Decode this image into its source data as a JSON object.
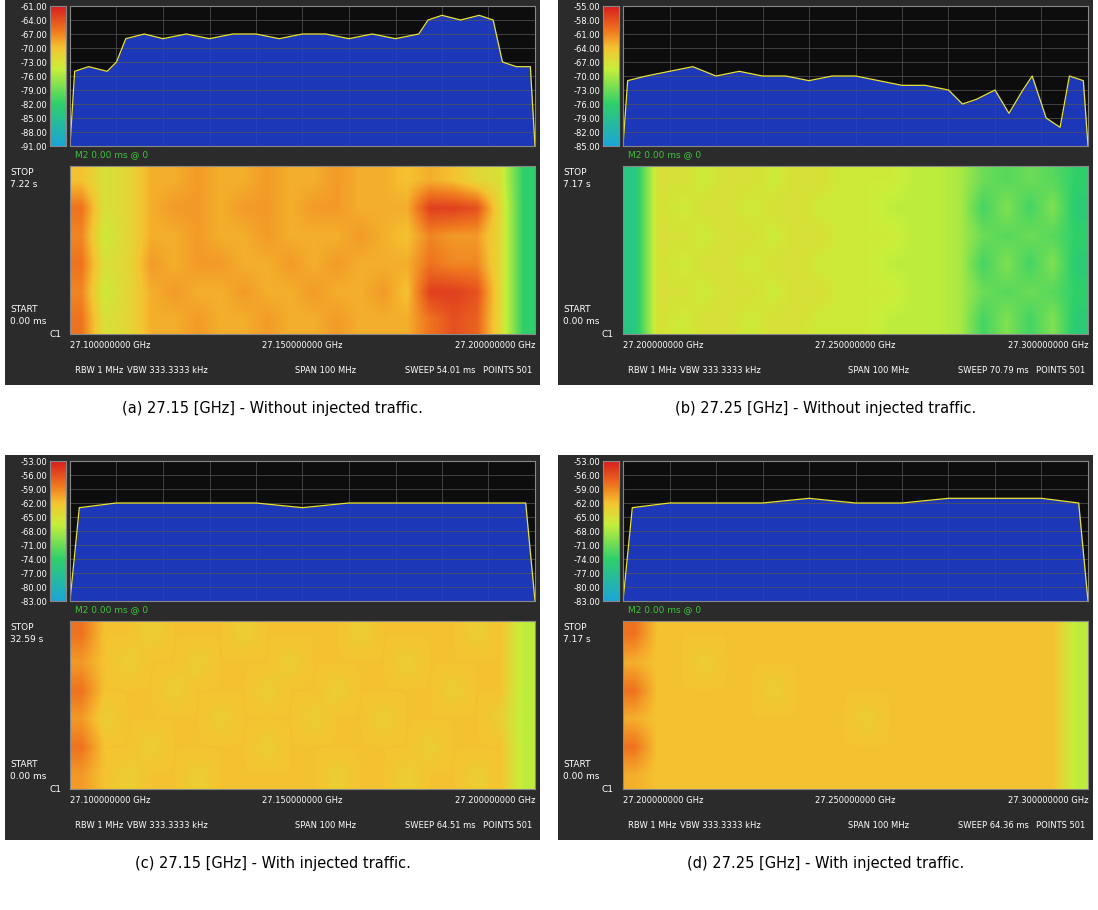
{
  "chart_data": [
    {
      "type": "spectrum",
      "caption": "(a) 27.15 [GHz] - Without injected traffic.",
      "m2": "M2 0.00 ms @ 0",
      "stop": "STOP",
      "stop_time": "7.22 s",
      "start": "START",
      "start_time": "0.00 ms",
      "channel": "C1",
      "rbw": "RBW 1 MHz",
      "vbw": "VBW 333.3333 kHz",
      "span": "SPAN 100 MHz",
      "sweep": "SWEEP 54.01 ms",
      "points": "POINTS 501",
      "xlim": [
        27.1,
        27.2
      ],
      "xticks": [
        {
          "value": 27.1,
          "label": "27.100000000 GHz"
        },
        {
          "value": 27.15,
          "label": "27.150000000 GHz"
        },
        {
          "value": 27.2,
          "label": "27.200000000 GHz"
        }
      ],
      "ylim": [
        -91,
        -61
      ],
      "yticks": [
        {
          "value": -61,
          "label": "-61.00"
        },
        {
          "value": -64,
          "label": "-64.00"
        },
        {
          "value": -67,
          "label": "-67.00"
        },
        {
          "value": -70,
          "label": "-70.00"
        },
        {
          "value": -73,
          "label": "-73.00"
        },
        {
          "value": -76,
          "label": "-76.00"
        },
        {
          "value": -79,
          "label": "-79.00"
        },
        {
          "value": -82,
          "label": "-82.00"
        },
        {
          "value": -85,
          "label": "-85.00"
        },
        {
          "value": -88,
          "label": "-88.00"
        },
        {
          "value": -91,
          "label": "-91.00"
        }
      ],
      "x": [
        27.1,
        27.101,
        27.104,
        27.108,
        27.11,
        27.112,
        27.116,
        27.12,
        27.125,
        27.13,
        27.135,
        27.14,
        27.145,
        27.15,
        27.155,
        27.16,
        27.165,
        27.17,
        27.175,
        27.177,
        27.18,
        27.184,
        27.188,
        27.191,
        27.193,
        27.196,
        27.199,
        27.2
      ],
      "values": [
        -91,
        -75,
        -74,
        -75,
        -73,
        -68,
        -67,
        -68,
        -67,
        -68,
        -67,
        -67,
        -68,
        -67,
        -67,
        -68,
        -67,
        -68,
        -67,
        -64,
        -63,
        -64,
        -63,
        -64,
        -73,
        -74,
        -74,
        -91
      ],
      "cells": [
        [
          -70,
          -73,
          -72,
          -69,
          -69,
          -68,
          -69,
          -69,
          -68,
          -69,
          -69,
          -68,
          -69,
          -69,
          -70,
          -69,
          -70,
          -72,
          -73,
          -82
        ],
        [
          -66,
          -73,
          -72,
          -69,
          -68,
          -68,
          -69,
          -68,
          -68,
          -69,
          -68,
          -68,
          -69,
          -69,
          -69,
          -63,
          -63,
          -64,
          -72,
          -82
        ],
        [
          -67,
          -74,
          -72,
          -69,
          -69,
          -68,
          -69,
          -69,
          -68,
          -69,
          -69,
          -69,
          -68,
          -69,
          -70,
          -67,
          -68,
          -68,
          -72,
          -82
        ],
        [
          -66,
          -73,
          -72,
          -68,
          -69,
          -68,
          -68,
          -69,
          -69,
          -68,
          -69,
          -68,
          -69,
          -69,
          -69,
          -66,
          -67,
          -67,
          -72,
          -82
        ],
        [
          -67,
          -74,
          -72,
          -69,
          -68,
          -69,
          -69,
          -68,
          -69,
          -69,
          -68,
          -69,
          -69,
          -68,
          -70,
          -63,
          -63,
          -64,
          -72,
          -82
        ],
        [
          -66,
          -73,
          -72,
          -69,
          -69,
          -68,
          -69,
          -69,
          -68,
          -69,
          -69,
          -68,
          -69,
          -69,
          -69,
          -66,
          -64,
          -65,
          -72,
          -82
        ]
      ]
    },
    {
      "type": "spectrum",
      "caption": "(b) 27.25 [GHz] - Without injected traffic.",
      "m2": "M2 0.00 ms @ 0",
      "stop": "STOP",
      "stop_time": "7.17 s",
      "start": "START",
      "start_time": "0.00 ms",
      "channel": "C1",
      "rbw": "RBW 1 MHz",
      "vbw": "VBW 333.3333 kHz",
      "span": "SPAN 100 MHz",
      "sweep": "SWEEP 70.79 ms",
      "points": "POINTS 501",
      "xlim": [
        27.2,
        27.3
      ],
      "xticks": [
        {
          "value": 27.2,
          "label": "27.200000000 GHz"
        },
        {
          "value": 27.25,
          "label": "27.250000000 GHz"
        },
        {
          "value": 27.3,
          "label": "27.300000000 GHz"
        }
      ],
      "ylim": [
        -85,
        -55
      ],
      "yticks": [
        {
          "value": -55,
          "label": "-55.00"
        },
        {
          "value": -58,
          "label": "-58.00"
        },
        {
          "value": -61,
          "label": "-61.00"
        },
        {
          "value": -64,
          "label": "-64.00"
        },
        {
          "value": -67,
          "label": "-67.00"
        },
        {
          "value": -70,
          "label": "-70.00"
        },
        {
          "value": -73,
          "label": "-73.00"
        },
        {
          "value": -76,
          "label": "-76.00"
        },
        {
          "value": -79,
          "label": "-79.00"
        },
        {
          "value": -82,
          "label": "-82.00"
        },
        {
          "value": -85,
          "label": "-85.00"
        }
      ],
      "x": [
        27.2,
        27.201,
        27.205,
        27.21,
        27.215,
        27.22,
        27.225,
        27.23,
        27.235,
        27.24,
        27.245,
        27.25,
        27.255,
        27.26,
        27.265,
        27.27,
        27.273,
        27.276,
        27.28,
        27.283,
        27.286,
        27.288,
        27.291,
        27.294,
        27.296,
        27.299,
        27.3
      ],
      "values": [
        -85,
        -71,
        -70,
        -69,
        -68,
        -70,
        -69,
        -70,
        -70,
        -71,
        -70,
        -70,
        -71,
        -72,
        -72,
        -73,
        -76,
        -75,
        -73,
        -78,
        -73,
        -70,
        -79,
        -81,
        -70,
        -71,
        -85
      ],
      "cells": [
        [
          -78,
          -67,
          -67,
          -68,
          -67,
          -67,
          -68,
          -67,
          -67,
          -68,
          -68,
          -68,
          -69,
          -69,
          -70,
          -73,
          -74,
          -73,
          -74,
          -76
        ],
        [
          -78,
          -67,
          -68,
          -67,
          -67,
          -68,
          -67,
          -67,
          -68,
          -68,
          -68,
          -69,
          -69,
          -69,
          -70,
          -75,
          -72,
          -75,
          -72,
          -77
        ],
        [
          -78,
          -67,
          -67,
          -68,
          -67,
          -67,
          -68,
          -67,
          -67,
          -68,
          -68,
          -68,
          -69,
          -69,
          -70,
          -73,
          -74,
          -73,
          -74,
          -76
        ],
        [
          -78,
          -67,
          -68,
          -67,
          -67,
          -68,
          -67,
          -67,
          -68,
          -68,
          -68,
          -69,
          -69,
          -69,
          -70,
          -75,
          -72,
          -75,
          -72,
          -77
        ],
        [
          -78,
          -67,
          -67,
          -68,
          -67,
          -67,
          -68,
          -67,
          -67,
          -68,
          -68,
          -68,
          -69,
          -69,
          -70,
          -73,
          -74,
          -73,
          -74,
          -76
        ],
        [
          -78,
          -67,
          -68,
          -67,
          -67,
          -68,
          -67,
          -67,
          -68,
          -68,
          -68,
          -69,
          -69,
          -69,
          -70,
          -75,
          -72,
          -75,
          -72,
          -77
        ]
      ]
    },
    {
      "type": "spectrum",
      "caption": "(c) 27.15 [GHz] - With injected traffic.",
      "m2": "M2 0.00 ms @ 0",
      "stop": "STOP",
      "stop_time": "32.59 s",
      "start": "START",
      "start_time": "0.00 ms",
      "channel": "C1",
      "rbw": "RBW 1 MHz",
      "vbw": "VBW 333.3333 kHz",
      "span": "SPAN 100 MHz",
      "sweep": "SWEEP 64.51 ms",
      "points": "POINTS 501",
      "xlim": [
        27.1,
        27.2
      ],
      "xticks": [
        {
          "value": 27.1,
          "label": "27.100000000 GHz"
        },
        {
          "value": 27.15,
          "label": "27.150000000 GHz"
        },
        {
          "value": 27.2,
          "label": "27.200000000 GHz"
        }
      ],
      "ylim": [
        -83,
        -53
      ],
      "yticks": [
        {
          "value": -53,
          "label": "-53.00"
        },
        {
          "value": -56,
          "label": "-56.00"
        },
        {
          "value": -59,
          "label": "-59.00"
        },
        {
          "value": -62,
          "label": "-62.00"
        },
        {
          "value": -65,
          "label": "-65.00"
        },
        {
          "value": -68,
          "label": "-68.00"
        },
        {
          "value": -71,
          "label": "-71.00"
        },
        {
          "value": -74,
          "label": "-74.00"
        },
        {
          "value": -77,
          "label": "-77.00"
        },
        {
          "value": -80,
          "label": "-80.00"
        },
        {
          "value": -83,
          "label": "-83.00"
        }
      ],
      "x": [
        27.1,
        27.102,
        27.11,
        27.12,
        27.13,
        27.14,
        27.15,
        27.16,
        27.17,
        27.18,
        27.19,
        27.198,
        27.2
      ],
      "values": [
        -83,
        -63,
        -62,
        -62,
        -62,
        -62,
        -63,
        -62,
        -62,
        -62,
        -62,
        -62,
        -83
      ],
      "cells": [
        [
          -58,
          -62,
          -62,
          -63,
          -62,
          -62,
          -62,
          -63,
          -62,
          -62,
          -62,
          -62,
          -63,
          -62,
          -62,
          -62,
          -62,
          -63,
          -62,
          -67
        ],
        [
          -60,
          -62,
          -63,
          -62,
          -62,
          -63,
          -62,
          -62,
          -62,
          -63,
          -62,
          -62,
          -62,
          -62,
          -63,
          -62,
          -62,
          -62,
          -62,
          -67
        ],
        [
          -58,
          -62,
          -62,
          -62,
          -63,
          -62,
          -62,
          -62,
          -63,
          -62,
          -62,
          -63,
          -62,
          -62,
          -62,
          -62,
          -63,
          -62,
          -62,
          -67
        ],
        [
          -60,
          -63,
          -62,
          -62,
          -62,
          -62,
          -63,
          -62,
          -62,
          -62,
          -63,
          -62,
          -62,
          -63,
          -62,
          -62,
          -62,
          -62,
          -63,
          -67
        ],
        [
          -58,
          -62,
          -62,
          -63,
          -62,
          -62,
          -62,
          -62,
          -63,
          -62,
          -62,
          -62,
          -62,
          -62,
          -62,
          -63,
          -62,
          -62,
          -62,
          -67
        ],
        [
          -60,
          -62,
          -63,
          -62,
          -62,
          -63,
          -62,
          -62,
          -62,
          -62,
          -62,
          -63,
          -62,
          -62,
          -63,
          -62,
          -62,
          -63,
          -62,
          -67
        ]
      ]
    },
    {
      "type": "spectrum",
      "caption": "(d) 27.25 [GHz] - With injected traffic.",
      "m2": "M2 0.00 ms @ 0",
      "stop": "STOP",
      "stop_time": "7.17 s",
      "start": "START",
      "start_time": "0.00 ms",
      "channel": "C1",
      "rbw": "RBW 1 MHz",
      "vbw": "VBW 333.3333 kHz",
      "span": "SPAN 100 MHz",
      "sweep": "SWEEP 64.36 ms",
      "points": "POINTS 501",
      "xlim": [
        27.2,
        27.3
      ],
      "xticks": [
        {
          "value": 27.2,
          "label": "27.200000000 GHz"
        },
        {
          "value": 27.25,
          "label": "27.250000000 GHz"
        },
        {
          "value": 27.3,
          "label": "27.300000000 GHz"
        }
      ],
      "ylim": [
        -83,
        -53
      ],
      "yticks": [
        {
          "value": -53,
          "label": "-53.00"
        },
        {
          "value": -56,
          "label": "-56.00"
        },
        {
          "value": -59,
          "label": "-59.00"
        },
        {
          "value": -62,
          "label": "-62.00"
        },
        {
          "value": -65,
          "label": "-65.00"
        },
        {
          "value": -68,
          "label": "-68.00"
        },
        {
          "value": -71,
          "label": "-71.00"
        },
        {
          "value": -74,
          "label": "-74.00"
        },
        {
          "value": -77,
          "label": "-77.00"
        },
        {
          "value": -80,
          "label": "-80.00"
        },
        {
          "value": -83,
          "label": "-83.00"
        }
      ],
      "x": [
        27.2,
        27.202,
        27.21,
        27.22,
        27.23,
        27.24,
        27.25,
        27.26,
        27.27,
        27.28,
        27.29,
        27.298,
        27.3
      ],
      "values": [
        -83,
        -63,
        -62,
        -62,
        -62,
        -61,
        -62,
        -62,
        -61,
        -61,
        -61,
        -62,
        -83
      ],
      "cells": [
        [
          -58,
          -62,
          -62,
          -62,
          -62,
          -62,
          -62,
          -62,
          -62,
          -62,
          -62,
          -62,
          -62,
          -62,
          -62,
          -62,
          -62,
          -62,
          -62,
          -67
        ],
        [
          -61,
          -62,
          -62,
          -63,
          -62,
          -62,
          -62,
          -62,
          -62,
          -62,
          -62,
          -62,
          -62,
          -62,
          -62,
          -62,
          -62,
          -62,
          -62,
          -67
        ],
        [
          -58,
          -62,
          -62,
          -62,
          -62,
          -62,
          -63,
          -62,
          -62,
          -62,
          -62,
          -62,
          -62,
          -62,
          -62,
          -62,
          -62,
          -62,
          -62,
          -67
        ],
        [
          -61,
          -62,
          -62,
          -62,
          -62,
          -62,
          -62,
          -62,
          -62,
          -62,
          -63,
          -62,
          -62,
          -62,
          -62,
          -62,
          -62,
          -62,
          -62,
          -67
        ],
        [
          -58,
          -62,
          -62,
          -62,
          -62,
          -62,
          -62,
          -62,
          -62,
          -62,
          -62,
          -62,
          -62,
          -62,
          -62,
          -62,
          -62,
          -62,
          -62,
          -67
        ],
        [
          -61,
          -62,
          -62,
          -62,
          -62,
          -62,
          -62,
          -62,
          -62,
          -62,
          -62,
          -62,
          -62,
          -62,
          -62,
          -62,
          -62,
          -62,
          -62,
          -67
        ]
      ]
    }
  ]
}
